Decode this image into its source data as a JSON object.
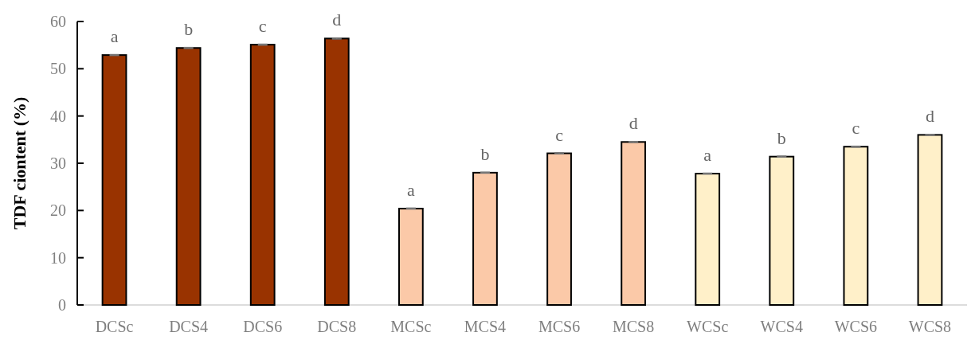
{
  "chart_data": {
    "type": "bar",
    "ylabel": "TDF ciontent (%)",
    "categories": [
      "DCSc",
      "DCS4",
      "DCS6",
      "DCS8",
      "MCSc",
      "MCS4",
      "MCS6",
      "MCS8",
      "WCSc",
      "WCS4",
      "WCS6",
      "WCS8"
    ],
    "values": [
      52.9,
      54.4,
      55.1,
      56.4,
      20.4,
      28.0,
      32.1,
      34.5,
      27.8,
      31.4,
      33.5,
      36.0
    ],
    "errors": [
      0.1,
      0.1,
      0.1,
      0.1,
      0.1,
      0.1,
      0.1,
      0.1,
      0.1,
      0.1,
      0.1,
      0.1
    ],
    "colors": [
      "#993300",
      "#993300",
      "#993300",
      "#993300",
      "#fbc9a8",
      "#fbc9a8",
      "#fbc9a8",
      "#fbc9a8",
      "#fff0c9",
      "#fff0c9",
      "#fff0c9",
      "#fff0c9"
    ],
    "ylim": [
      0,
      60
    ],
    "yticks": [
      0,
      10,
      20,
      30,
      40,
      50,
      60
    ],
    "grid": false,
    "annotations": [
      {
        "text": "a",
        "x": "DCSc",
        "y": 52.9
      },
      {
        "text": "b",
        "x": "DCS4",
        "y": 54.4
      },
      {
        "text": "c",
        "x": "DCS6",
        "y": 55.1
      },
      {
        "text": "d",
        "x": "DCS8",
        "y": 56.4
      },
      {
        "text": "a",
        "x": "MCSc",
        "y": 20.4
      },
      {
        "text": "b",
        "x": "MCS4",
        "y": 28.0
      },
      {
        "text": "c",
        "x": "MCS6",
        "y": 32.1
      },
      {
        "text": "d",
        "x": "MCS8",
        "y": 34.5
      },
      {
        "text": "a",
        "x": "WCSc",
        "y": 27.8
      },
      {
        "text": "b",
        "x": "WCS4",
        "y": 31.4
      },
      {
        "text": "c",
        "x": "WCS6",
        "y": 33.5
      },
      {
        "text": "d",
        "x": "WCS8",
        "y": 36.0
      }
    ]
  }
}
